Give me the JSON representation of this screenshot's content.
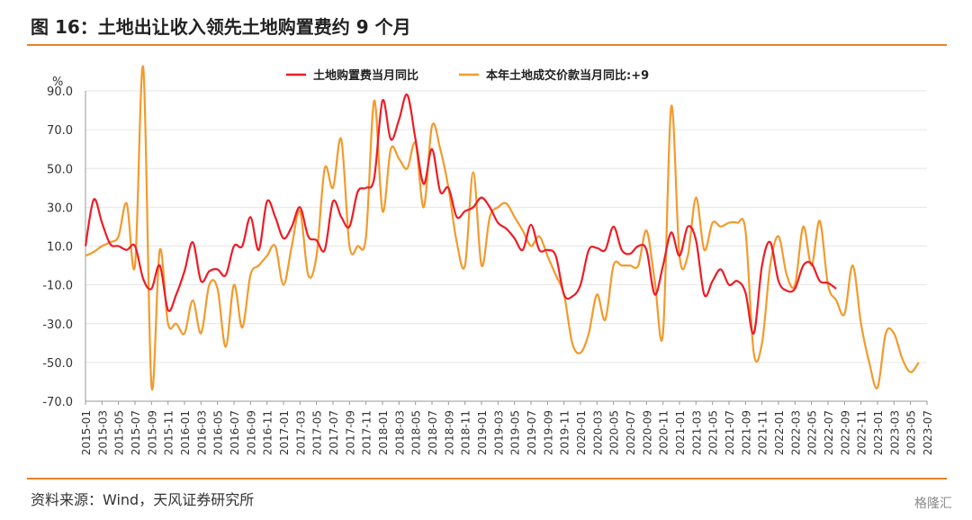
{
  "header": {
    "title": "图 16：土地出让收入领先土地购置费约 9 个月"
  },
  "footer": {
    "source": "资料来源：Wind，天风证券研究所",
    "watermark": "格隆汇"
  },
  "colors": {
    "accent": "#e8822a",
    "series_red": "#ee1c25",
    "series_orange": "#f39a2c"
  },
  "chart_data": {
    "type": "line",
    "ylabel": "%",
    "ylim": [
      -70,
      90
    ],
    "yticks": [
      "90.0",
      "70.0",
      "50.0",
      "30.0",
      "10.0",
      "-10.0",
      "-30.0",
      "-50.0",
      "-70.0"
    ],
    "xticks": [
      "2015-01",
      "2015-03",
      "2015-05",
      "2015-07",
      "2015-09",
      "2015-11",
      "2016-01",
      "2016-03",
      "2016-05",
      "2016-07",
      "2016-09",
      "2016-11",
      "2017-01",
      "2017-03",
      "2017-05",
      "2017-07",
      "2017-09",
      "2017-11",
      "2018-01",
      "2018-03",
      "2018-05",
      "2018-07",
      "2018-09",
      "2018-11",
      "2019-01",
      "2019-03",
      "2019-05",
      "2019-07",
      "2019-09",
      "2019-11",
      "2020-01",
      "2020-03",
      "2020-05",
      "2020-07",
      "2020-09",
      "2020-11",
      "2021-01",
      "2021-03",
      "2021-05",
      "2021-07",
      "2021-09",
      "2021-11",
      "2022-01",
      "2022-03",
      "2022-05",
      "2022-07",
      "2022-09",
      "2022-11",
      "2023-01",
      "2023-03",
      "2023-05",
      "2023-07"
    ],
    "legend_position": "top",
    "series": [
      {
        "name": "土地购置费当月同比",
        "color": "#ee1c25",
        "start": "2015-01",
        "values": [
          10,
          34,
          22,
          11,
          10,
          8,
          10,
          -7,
          -12,
          0,
          -23,
          -15,
          -3,
          12,
          -8,
          -3,
          -2,
          -5,
          10,
          10,
          25,
          8,
          33,
          25,
          14,
          20,
          30,
          15,
          13,
          8,
          33,
          25,
          20,
          38,
          40,
          45,
          85,
          65,
          75,
          88,
          65,
          42,
          60,
          38,
          40,
          25,
          28,
          30,
          35,
          30,
          22,
          19,
          14,
          8,
          21,
          8,
          8,
          5,
          -15,
          -16,
          -10,
          8,
          9,
          8,
          20,
          8,
          6,
          10,
          8,
          -15,
          0,
          17,
          5,
          20,
          13,
          -15,
          -8,
          -2,
          -10,
          -8,
          -14,
          -35,
          0,
          12,
          -8,
          -13,
          -12,
          0,
          1,
          -8,
          -9,
          -12
        ]
      },
      {
        "name": "本年土地成交价款当月同比:+9",
        "color": "#f39a2c",
        "start": "2015-01",
        "values": [
          5,
          7,
          10,
          12,
          15,
          32,
          0,
          110,
          -62,
          8,
          -30,
          -30,
          -35,
          -18,
          -35,
          -10,
          -12,
          -42,
          -10,
          -32,
          -5,
          0,
          5,
          10,
          -10,
          10,
          28,
          -5,
          5,
          50,
          40,
          65,
          10,
          10,
          15,
          85,
          28,
          60,
          55,
          50,
          63,
          30,
          72,
          60,
          40,
          12,
          0,
          48,
          0,
          25,
          30,
          32,
          25,
          18,
          10,
          15,
          5,
          -5,
          -15,
          -40,
          -45,
          -35,
          -15,
          -28,
          0,
          0,
          0,
          0,
          18,
          -8,
          -35,
          82,
          5,
          5,
          35,
          8,
          22,
          20,
          22,
          22,
          18,
          -45,
          -40,
          0,
          15,
          -5,
          -10,
          20,
          0,
          23,
          -10,
          -18,
          -25,
          0,
          -30,
          -50,
          -63,
          -35,
          -35,
          -48,
          -55,
          -50
        ]
      }
    ]
  }
}
